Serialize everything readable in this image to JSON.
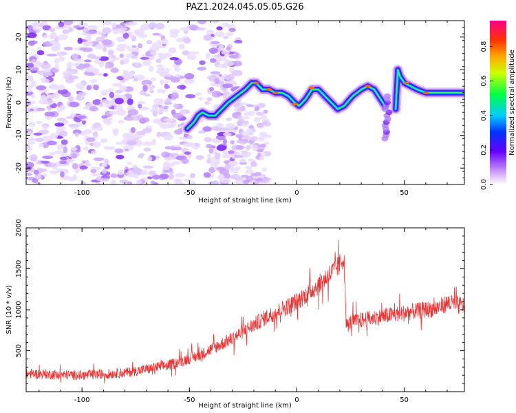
{
  "figure_title": "PAZ1.2024.045.05.05.G26",
  "chart_data": [
    {
      "type": "heatmap",
      "xlabel": "Height of straight line (km)",
      "ylabel": "Frequency (Hz)",
      "xlim": [
        -126,
        78
      ],
      "ylim": [
        -25,
        25
      ],
      "x_ticks": [
        -100,
        -50,
        0,
        50
      ],
      "y_ticks": [
        -20,
        -10,
        0,
        10,
        20
      ],
      "colorbar": {
        "label": "Normalized spectral amplitude",
        "range": [
          0,
          0.95
        ],
        "ticks": [
          0.0,
          0.2,
          0.4,
          0.6,
          0.8
        ],
        "tick_labels": [
          "0.0",
          "0.2",
          "0.4",
          "0.6",
          "0.8"
        ]
      },
      "ridge": {
        "x": [
          -51,
          -48,
          -46,
          -44,
          -41,
          -38,
          -35,
          -32,
          -28,
          -24,
          -21,
          -19,
          -16,
          -13,
          -10,
          -7,
          -4,
          -1,
          1,
          4,
          7,
          10,
          13,
          16,
          19,
          22,
          26,
          30,
          33,
          36,
          39,
          41
        ],
        "freq": [
          -8,
          -6,
          -4,
          -3,
          -4,
          -4,
          -2,
          0,
          2,
          4,
          6,
          6,
          4,
          4,
          3,
          3,
          2,
          0,
          -1,
          1,
          4,
          4,
          2,
          0,
          -2,
          -1,
          2,
          4,
          5,
          4,
          1,
          -1
        ]
      },
      "ridge2": {
        "x": [
          46,
          47,
          48,
          50,
          53,
          56,
          60,
          65,
          70,
          75,
          78
        ],
        "freq": [
          -2,
          10,
          8,
          6,
          5,
          4,
          3,
          3,
          3,
          3,
          3
        ]
      }
    },
    {
      "type": "line",
      "xlabel": "Height of straight line (km)",
      "ylabel": "SNR (10 * v/v)",
      "xlim": [
        -126,
        78
      ],
      "ylim": [
        0,
        2000
      ],
      "x_ticks": [
        -100,
        -50,
        0,
        50
      ],
      "y_ticks": [
        500,
        1000,
        1500,
        2000
      ],
      "color": "#ee3333",
      "trend": {
        "x": [
          -126,
          -100,
          -80,
          -60,
          -45,
          -30,
          -15,
          0,
          10,
          20,
          22,
          23,
          25,
          40,
          55,
          65,
          70,
          78
        ],
        "y": [
          220,
          200,
          230,
          320,
          450,
          650,
          900,
          1100,
          1300,
          1550,
          1650,
          800,
          850,
          920,
          980,
          1020,
          1080,
          1050
        ]
      },
      "noise_amplitude": 80
    }
  ]
}
